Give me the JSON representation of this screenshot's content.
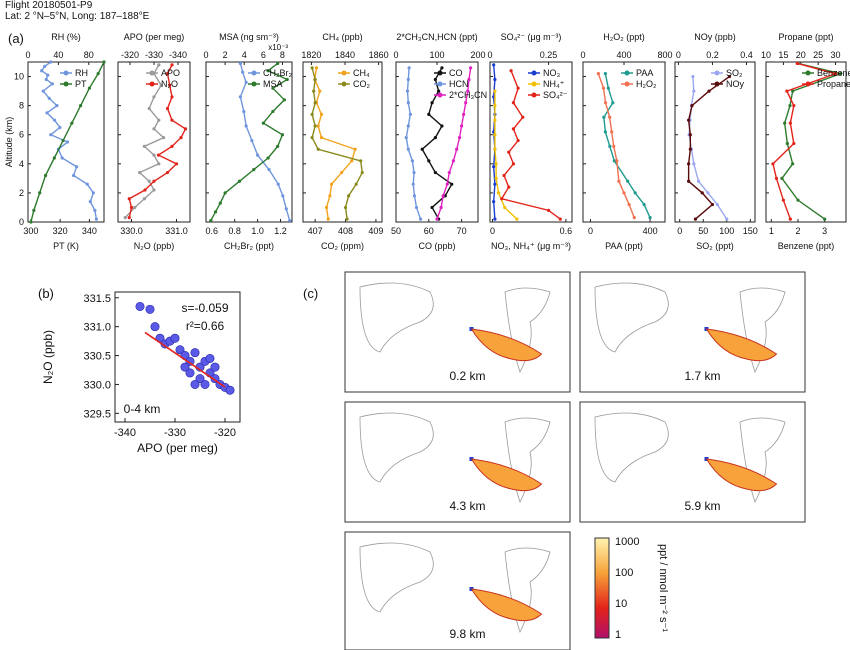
{
  "header": {
    "flight": "Flight 20180501-P9",
    "location": "Lat: 2 °N–5°N, Long: 187–188°E"
  },
  "panel_labels": {
    "a": "(a)",
    "b": "(b)",
    "c": "(c)"
  },
  "colors": {
    "blue": "#6f95dd",
    "green": "#2d7a2d",
    "red": "#e2231a",
    "gray": "#9a9a9a",
    "teal": "#1e9a8f",
    "olive": "#8a8a1c",
    "orange": "#f2a21b",
    "black": "#111111",
    "magenta": "#e020c0",
    "navy": "#1a3ccf",
    "yellow": "#f0c000",
    "salmon": "#f07050",
    "darkred": "#5a0a0a",
    "lavender": "#9aa6f0",
    "dot": "#5a5ae6"
  },
  "chart_data": [
    {
      "type": "line",
      "id": "rh_pt",
      "ylabel": "Altitude (km)",
      "ylim": [
        0,
        11
      ],
      "yticks": [
        "0",
        "2",
        "4",
        "6",
        "8",
        "10"
      ],
      "top_axis": {
        "label": "RH (%)",
        "ticks": [
          "0",
          "40",
          "80"
        ],
        "range": [
          0,
          100
        ]
      },
      "bottom_axis": {
        "label": "PT (K)",
        "ticks": [
          "300",
          "320",
          "340"
        ],
        "range": [
          298,
          350
        ]
      },
      "series": [
        {
          "name": "RH",
          "axis": "top",
          "color": "blue",
          "x": [
            90,
            88,
            82,
            86,
            78,
            60,
            64,
            45,
            40,
            52,
            30,
            42,
            35,
            25,
            38,
            28,
            20,
            32,
            24,
            26,
            18,
            22,
            30
          ],
          "y": [
            0.2,
            0.8,
            1.4,
            2.0,
            2.6,
            3.2,
            3.8,
            4.4,
            5.0,
            5.5,
            6.0,
            6.5,
            7.0,
            7.5,
            8.0,
            8.5,
            9.0,
            9.5,
            9.8,
            10.1,
            10.4,
            10.7,
            11.0
          ]
        },
        {
          "name": "PT",
          "axis": "bottom",
          "color": "green",
          "x": [
            300,
            302,
            306,
            310,
            316,
            322,
            328,
            334,
            340,
            346,
            350
          ],
          "y": [
            0,
            0.8,
            2.0,
            3.2,
            4.4,
            5.6,
            6.8,
            8.0,
            9.2,
            10.2,
            11.0
          ]
        }
      ]
    },
    {
      "type": "line",
      "id": "apo_n2o",
      "top_axis": {
        "label": "APO (per meg)",
        "ticks": [
          "-320",
          "-330",
          "-340"
        ],
        "range": [
          -315,
          -345
        ]
      },
      "bottom_axis": {
        "label": "N₂O (ppb)",
        "ticks": [
          "330.0",
          "331.0"
        ],
        "range": [
          329.7,
          331.3
        ]
      },
      "series": [
        {
          "name": "APO",
          "axis": "top",
          "color": "gray",
          "x": [
            -318,
            -322,
            -326,
            -330,
            -328,
            -324,
            -332,
            -330,
            -326,
            -334,
            -330,
            -332,
            -328,
            -330,
            -333,
            -330,
            -332
          ],
          "y": [
            0.3,
            1.0,
            1.6,
            2.2,
            2.8,
            3.4,
            4.0,
            4.6,
            5.2,
            5.8,
            6.4,
            7.0,
            7.8,
            8.6,
            9.4,
            10.2,
            10.8
          ]
        },
        {
          "name": "N₂O",
          "axis": "bottom",
          "color": "red",
          "x": [
            329.95,
            330.0,
            329.95,
            330.3,
            330.5,
            330.8,
            331.0,
            330.6,
            330.9,
            331.1,
            331.2,
            330.9,
            330.8,
            330.9,
            330.85,
            330.8,
            330.9
          ],
          "y": [
            0.3,
            1.0,
            1.6,
            2.2,
            2.8,
            3.4,
            4.0,
            4.6,
            5.2,
            5.8,
            6.4,
            7.0,
            7.8,
            8.6,
            9.4,
            10.2,
            10.8
          ]
        }
      ]
    },
    {
      "type": "line",
      "id": "msa_ch2br2",
      "top_axis": {
        "label": "MSA (ng sm⁻³)",
        "ticks": [
          "0",
          "2",
          "4",
          "6",
          "8"
        ],
        "range": [
          0,
          9
        ],
        "exponent": "x10⁻³"
      },
      "bottom_axis": {
        "label": "CH₂Br₂ (ppt)",
        "ticks": [
          "0.6",
          "0.8",
          "1.0",
          "1.2"
        ],
        "range": [
          0.55,
          1.3
        ]
      },
      "series": [
        {
          "name": "CH₂Br₂",
          "axis": "bottom",
          "color": "blue",
          "x": [
            1.28,
            1.25,
            1.22,
            1.18,
            1.1,
            1.0,
            0.95,
            0.9,
            0.88,
            0.85,
            0.9,
            0.87,
            0.85
          ],
          "y": [
            0.1,
            0.9,
            1.8,
            2.6,
            3.6,
            4.6,
            5.6,
            6.6,
            7.6,
            8.6,
            9.6,
            10.3,
            10.9
          ]
        },
        {
          "name": "MSA",
          "axis": "top",
          "color": "green",
          "x": [
            0.5,
            1.0,
            1.5,
            2.0,
            3.5,
            5.0,
            6.5,
            7.5,
            8.0,
            6.0,
            7.0,
            8.2,
            7.0,
            8.5,
            6.5,
            7.5
          ],
          "y": [
            0.1,
            0.7,
            1.3,
            2.0,
            2.8,
            3.6,
            4.4,
            5.2,
            6.0,
            6.8,
            7.6,
            8.4,
            9.2,
            9.8,
            10.4,
            10.9
          ]
        }
      ]
    },
    {
      "type": "line",
      "id": "ch4_co2",
      "top_axis": {
        "label": "CH₄ (ppb)",
        "ticks": [
          "1820",
          "1840",
          "1860"
        ],
        "range": [
          1815,
          1862
        ]
      },
      "bottom_axis": {
        "label": "CO₂ (ppm)",
        "ticks": [
          "407",
          "408",
          "409"
        ],
        "range": [
          406.6,
          409.2
        ]
      },
      "series": [
        {
          "name": "CH₄",
          "axis": "top",
          "color": "orange",
          "x": [
            1830,
            1829,
            1831,
            1832,
            1838,
            1844,
            1846,
            1826,
            1824,
            1826,
            1823,
            1825,
            1822,
            1823
          ],
          "y": [
            0.2,
            1.0,
            1.8,
            2.6,
            3.4,
            4.2,
            5.0,
            5.8,
            6.6,
            7.4,
            8.2,
            9.0,
            9.8,
            10.6
          ]
        },
        {
          "name": "CO₂",
          "axis": "bottom",
          "color": "olive",
          "x": [
            408.05,
            408.0,
            408.1,
            408.35,
            408.55,
            408.5,
            407.1,
            406.9,
            407.0,
            406.9,
            407.0,
            406.95,
            407.0,
            406.9
          ],
          "y": [
            0.2,
            1.0,
            1.8,
            2.6,
            3.4,
            4.2,
            5.0,
            5.8,
            6.6,
            7.4,
            8.2,
            9.0,
            9.8,
            10.6
          ]
        }
      ]
    },
    {
      "type": "line",
      "id": "co_hcn",
      "top_axis": {
        "label": "2*CH₃CN,HCN (ppt)",
        "ticks": [
          "0",
          "100",
          "200"
        ],
        "range": [
          0,
          200
        ]
      },
      "bottom_axis": {
        "label": "CO (ppb)",
        "ticks": [
          "50",
          "60",
          "70"
        ],
        "range": [
          50,
          75
        ]
      },
      "series": [
        {
          "name": "CO",
          "axis": "bottom",
          "color": "black",
          "x": [
            63,
            61,
            65,
            67,
            62,
            60,
            58,
            62,
            64,
            60,
            61,
            63,
            62,
            64
          ],
          "y": [
            0.2,
            1.0,
            1.8,
            2.6,
            3.4,
            4.2,
            5.0,
            5.8,
            6.6,
            7.4,
            8.2,
            9.0,
            9.8,
            10.6
          ]
        },
        {
          "name": "HCN",
          "axis": "top",
          "color": "blue",
          "x": [
            60,
            50,
            45,
            42,
            44,
            40,
            30,
            25,
            30,
            35,
            30,
            28,
            30,
            32
          ],
          "y": [
            0.2,
            1.0,
            1.8,
            2.6,
            3.4,
            4.2,
            5.0,
            5.8,
            6.6,
            7.4,
            8.2,
            9.0,
            9.8,
            10.6
          ]
        },
        {
          "name": "2*CH₃CN",
          "axis": "top",
          "color": "magenta",
          "x": [
            100,
            110,
            115,
            125,
            130,
            140,
            148,
            155,
            160,
            165,
            170,
            175,
            178,
            182
          ],
          "y": [
            0.2,
            1.0,
            1.8,
            2.6,
            3.4,
            4.2,
            5.0,
            5.8,
            6.6,
            7.4,
            8.2,
            9.0,
            9.8,
            10.6
          ]
        }
      ]
    },
    {
      "type": "line",
      "id": "aerosol",
      "top_axis": {
        "label": "SO₄²⁻ (μg m⁻³)",
        "ticks": [
          "0",
          "0.25"
        ],
        "range": [
          0,
          0.35
        ]
      },
      "bottom_axis": {
        "label": "NO₃, NH₄⁺ (μg m⁻³)",
        "ticks": [
          "0",
          "0.6"
        ],
        "range": [
          -0.02,
          0.65
        ]
      },
      "series": [
        {
          "name": "NO₃",
          "axis": "bottom",
          "color": "navy",
          "x": [
            0.02,
            0.01,
            0.02,
            0.01,
            0.02,
            0.01,
            0.02,
            0.01,
            0.02,
            0.01
          ],
          "y": [
            0.2,
            1.4,
            2.6,
            3.8,
            5.0,
            6.2,
            7.4,
            8.6,
            9.8,
            10.8
          ]
        },
        {
          "name": "NH₄⁺",
          "axis": "bottom",
          "color": "yellow",
          "x": [
            0.2,
            0.1,
            0.05,
            0.03,
            0.03,
            0.02,
            0.02,
            0.02,
            0.02,
            0.02
          ],
          "y": [
            0.2,
            1.0,
            2.0,
            3.0,
            4.0,
            5.0,
            6.0,
            7.0,
            8.0,
            9.0
          ]
        },
        {
          "name": "SO₄²⁻",
          "axis": "top",
          "color": "red",
          "x": [
            0.3,
            0.25,
            0.05,
            0.08,
            0.06,
            0.1,
            0.08,
            0.12,
            0.1,
            0.14,
            0.1,
            0.12,
            0.09
          ],
          "y": [
            0.2,
            0.8,
            1.6,
            2.4,
            3.2,
            4.0,
            4.8,
            5.6,
            6.4,
            7.2,
            8.2,
            9.2,
            10.4
          ]
        }
      ]
    },
    {
      "type": "line",
      "id": "h2o2_paa",
      "top_axis": {
        "label": "H₂O₂ (ppt)",
        "ticks": [
          "0",
          "400",
          "800"
        ],
        "range": [
          0,
          800
        ]
      },
      "bottom_axis": {
        "label": "PAA (ppt)",
        "ticks": [
          "0",
          "400"
        ],
        "range": [
          -50,
          500
        ]
      },
      "series": [
        {
          "name": "PAA",
          "axis": "bottom",
          "color": "teal",
          "x": [
            400,
            360,
            300,
            250,
            160,
            130,
            100,
            90,
            150,
            120,
            100
          ],
          "y": [
            0.3,
            1.2,
            2.0,
            2.8,
            4.2,
            5.2,
            6.2,
            7.2,
            8.2,
            9.2,
            10.2
          ]
        },
        {
          "name": "H₂O₂",
          "axis": "top",
          "color": "salmon",
          "x": [
            500,
            450,
            400,
            350,
            330,
            300,
            280,
            260,
            220,
            200,
            150
          ],
          "y": [
            0.3,
            1.2,
            2.0,
            2.8,
            4.2,
            5.2,
            6.2,
            7.2,
            8.2,
            9.2,
            10.2
          ]
        }
      ]
    },
    {
      "type": "line",
      "id": "noy_so2",
      "top_axis": {
        "label": "NOy (ppb)",
        "ticks": [
          "0",
          "0.2",
          "0.4"
        ],
        "range": [
          -0.02,
          0.45
        ]
      },
      "bottom_axis": {
        "label": "SO₂ (ppt)",
        "ticks": [
          "0",
          "50",
          "100",
          "150"
        ],
        "range": [
          -10,
          160
        ]
      },
      "series": [
        {
          "name": "SO₂",
          "axis": "bottom",
          "color": "lavender",
          "x": [
            100,
            80,
            60,
            40,
            30,
            25,
            20,
            22,
            25,
            30,
            28
          ],
          "y": [
            0.2,
            1.2,
            2.0,
            2.8,
            4.0,
            5.0,
            6.0,
            7.0,
            8.0,
            9.0,
            10.0
          ]
        },
        {
          "name": "NOy",
          "axis": "top",
          "color": "darkred",
          "x": [
            0.1,
            0.2,
            0.14,
            0.06,
            0.06,
            0.07,
            0.07,
            0.06,
            0.08,
            0.18,
            0.3
          ],
          "y": [
            0.2,
            1.2,
            2.0,
            2.8,
            4.0,
            5.0,
            6.0,
            7.0,
            8.0,
            9.0,
            10.0
          ]
        }
      ]
    },
    {
      "type": "line",
      "id": "propane_benzene",
      "top_axis": {
        "label": "Propane (ppt)",
        "ticks": [
          "10",
          "15",
          "20",
          "25",
          "30"
        ],
        "range": [
          10,
          33
        ]
      },
      "bottom_axis": {
        "label": "Benzene (ppt)",
        "ticks": [
          "1",
          "2",
          "3"
        ],
        "range": [
          0.8,
          3.8
        ]
      },
      "series": [
        {
          "name": "Benzene",
          "axis": "bottom",
          "color": "green",
          "x": [
            3.0,
            2.0,
            1.4,
            1.8,
            1.6,
            1.5,
            1.7,
            1.8,
            3.6,
            2.0
          ],
          "y": [
            0.2,
            1.5,
            3.0,
            4.0,
            5.4,
            6.8,
            8.0,
            9.0,
            10.2,
            10.9
          ]
        },
        {
          "name": "Propane",
          "axis": "top",
          "color": "red",
          "x": [
            17,
            15,
            13,
            12,
            18,
            17,
            18,
            16,
            30,
            19
          ],
          "y": [
            0.2,
            1.5,
            3.0,
            4.0,
            5.4,
            6.8,
            8.0,
            9.0,
            10.2,
            10.9
          ]
        }
      ]
    },
    {
      "type": "scatter",
      "id": "b",
      "xlabel": "APO (per meg)",
      "ylabel": "N₂O (ppb)",
      "xlim": [
        -342,
        -317
      ],
      "ylim": [
        329.35,
        331.6
      ],
      "xticks": [
        "-340",
        "-330",
        "-320"
      ],
      "yticks": [
        "329.5",
        "330.0",
        "330.5",
        "331.0",
        "331.5"
      ],
      "annotations": [
        "s=-0.059",
        "r²=0.66",
        "0-4 km"
      ],
      "fit": {
        "slope": -0.059,
        "x0": -336,
        "x1": -320,
        "intercept_at": 330.9
      },
      "points": [
        [
          -337,
          331.35
        ],
        [
          -335,
          331.3
        ],
        [
          -334,
          331.0
        ],
        [
          -333,
          330.8
        ],
        [
          -332,
          330.7
        ],
        [
          -331,
          330.75
        ],
        [
          -330,
          330.8
        ],
        [
          -329,
          330.6
        ],
        [
          -328,
          330.5
        ],
        [
          -327,
          330.4
        ],
        [
          -326,
          330.55
        ],
        [
          -325,
          330.3
        ],
        [
          -324,
          330.4
        ],
        [
          -323,
          330.2
        ],
        [
          -322,
          330.1
        ],
        [
          -321,
          330.0
        ],
        [
          -320,
          329.95
        ],
        [
          -319,
          329.9
        ],
        [
          -325,
          330.1
        ],
        [
          -327,
          330.2
        ],
        [
          -328,
          330.3
        ],
        [
          -324,
          330.0
        ],
        [
          -323,
          330.45
        ],
        [
          -322,
          330.3
        ],
        [
          -326,
          330.0
        ]
      ]
    }
  ],
  "maps": {
    "labels": [
      "0.2 km",
      "1.7 km",
      "4.3 km",
      "5.9 km",
      "9.8 km"
    ],
    "colorbar": {
      "ticks": [
        "1000",
        "100",
        "10",
        "1"
      ],
      "label": "ppt / nmol m⁻² s⁻¹"
    }
  }
}
